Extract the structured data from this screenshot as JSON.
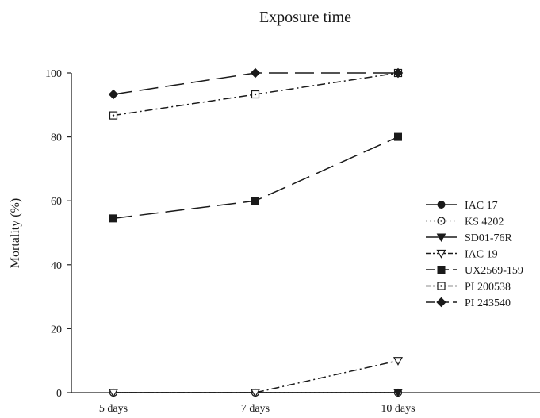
{
  "chart_data": {
    "type": "line",
    "title": "Exposure time",
    "xlabel": "",
    "ylabel": "Mortality (%)",
    "categories": [
      "5 days",
      "7 days",
      "10 days"
    ],
    "ylim": [
      0,
      100
    ],
    "yticks": [
      0,
      20,
      40,
      60,
      80,
      100
    ],
    "grid": false,
    "legend_position": "right",
    "series": [
      {
        "name": "IAC 17",
        "values": [
          0,
          0,
          0
        ],
        "marker": "circle-filled",
        "dash": "solid"
      },
      {
        "name": "KS 4202",
        "values": [
          0,
          0,
          0
        ],
        "marker": "circle-open-dot",
        "dash": "dotted"
      },
      {
        "name": "SD01-76R",
        "values": [
          0,
          0,
          0
        ],
        "marker": "triangle-down-filled",
        "dash": "solid"
      },
      {
        "name": "IAC 19",
        "values": [
          0,
          0,
          10
        ],
        "marker": "triangle-down-open",
        "dash": "dashdot"
      },
      {
        "name": "UX2569-159",
        "values": [
          54.5,
          60,
          80
        ],
        "marker": "square-filled",
        "dash": "longdash"
      },
      {
        "name": "PI 200538",
        "values": [
          86.7,
          93.3,
          100
        ],
        "marker": "square-open-dot",
        "dash": "dashdot"
      },
      {
        "name": "PI 243540",
        "values": [
          93.3,
          100,
          100
        ],
        "marker": "diamond-filled",
        "dash": "longdash"
      }
    ]
  }
}
